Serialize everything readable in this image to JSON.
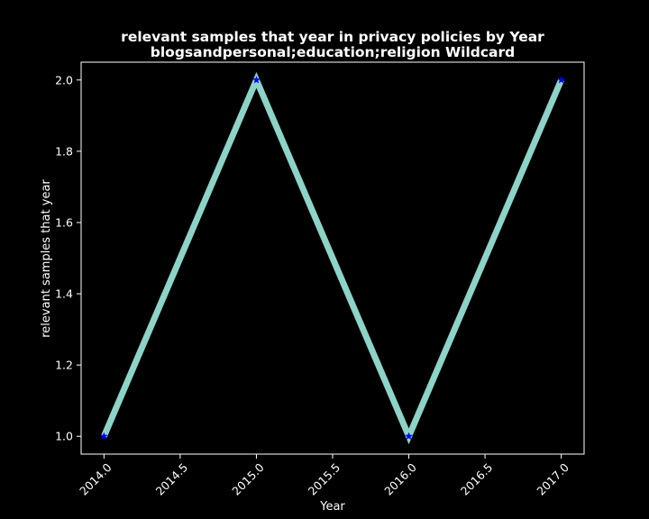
{
  "chart_data": {
    "type": "line",
    "title": "relevant samples that year in privacy policies by Year",
    "subtitle": "blogsandpersonal;education;religion Wildcard",
    "xlabel": "Year",
    "ylabel": "relevant samples that year",
    "x": [
      2014.0,
      2015.0,
      2016.0,
      2017.0
    ],
    "series": [
      {
        "values": [
          1.0,
          2.0,
          1.0,
          2.0
        ],
        "line_color": "#8dd3c7",
        "marker_color": "#0000ff",
        "marker": "star"
      }
    ],
    "xlim": [
      2013.85,
      2017.15
    ],
    "ylim": [
      0.95,
      2.05
    ],
    "xticks": [
      "2014.0",
      "2014.5",
      "2015.0",
      "2015.5",
      "2016.0",
      "2016.5",
      "2017.0"
    ],
    "xtick_values": [
      2014.0,
      2014.5,
      2015.0,
      2015.5,
      2016.0,
      2016.5,
      2017.0
    ],
    "yticks": [
      "1.0",
      "1.2",
      "1.4",
      "1.6",
      "1.8",
      "2.0"
    ],
    "ytick_values": [
      1.0,
      1.2,
      1.4,
      1.6,
      1.8,
      2.0
    ],
    "grid": false,
    "legend": "none",
    "colors": {
      "background": "#000000",
      "axes": "#ffffff",
      "text": "#ffffff"
    }
  }
}
